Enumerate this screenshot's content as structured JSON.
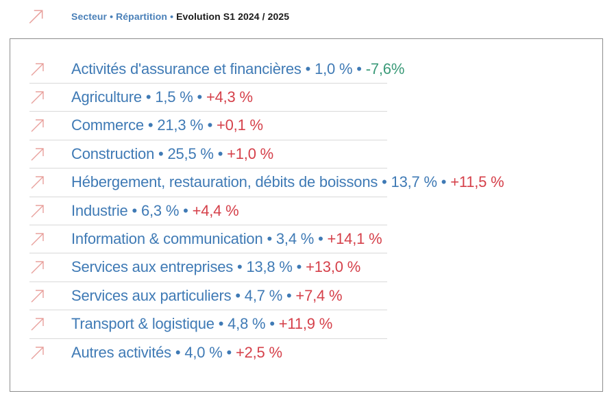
{
  "header": {
    "part1": "Secteur",
    "part2": "Répartition",
    "part3": "Evolution S1 2024 / 2025",
    "separator": "•"
  },
  "colors": {
    "label_blue": "#3f7ab5",
    "positive_red": "#d5404a",
    "negative_green": "#3a9a78",
    "arrow_pink": "#e8a09c"
  },
  "icon": "arrow-up-right-icon",
  "separator": "•",
  "rows": [
    {
      "sector": "Activités d'assurance et financières",
      "share": "1,0 %",
      "change": "-7,6%",
      "trend": "negative"
    },
    {
      "sector": "Agriculture",
      "share": "1,5 %",
      "change": "+4,3 %",
      "trend": "positive"
    },
    {
      "sector": "Commerce",
      "share": "21,3 %",
      "change": "+0,1 %",
      "trend": "positive"
    },
    {
      "sector": "Construction",
      "share": "25,5 %",
      "change": "+1,0 %",
      "trend": "positive"
    },
    {
      "sector": "Hébergement, restauration, débits de boissons",
      "share": "13,7 %",
      "change": "+11,5 %",
      "trend": "positive"
    },
    {
      "sector": "Industrie",
      "share": "6,3 %",
      "change": "+4,4 %",
      "trend": "positive"
    },
    {
      "sector": "Information & communication",
      "share": "3,4 %",
      "change": "+14,1 %",
      "trend": "positive"
    },
    {
      "sector": "Services aux entreprises",
      "share": "13,8 %",
      "change": "+13,0 %",
      "trend": "positive"
    },
    {
      "sector": "Services aux particuliers",
      "share": "4,7 %",
      "change": "+7,4 %",
      "trend": "positive"
    },
    {
      "sector": "Transport & logistique",
      "share": "4,8 %",
      "change": "+11,9 %",
      "trend": "positive"
    },
    {
      "sector": "Autres activités",
      "share": "4,0 %",
      "change": "+2,5 %",
      "trend": "positive"
    }
  ]
}
